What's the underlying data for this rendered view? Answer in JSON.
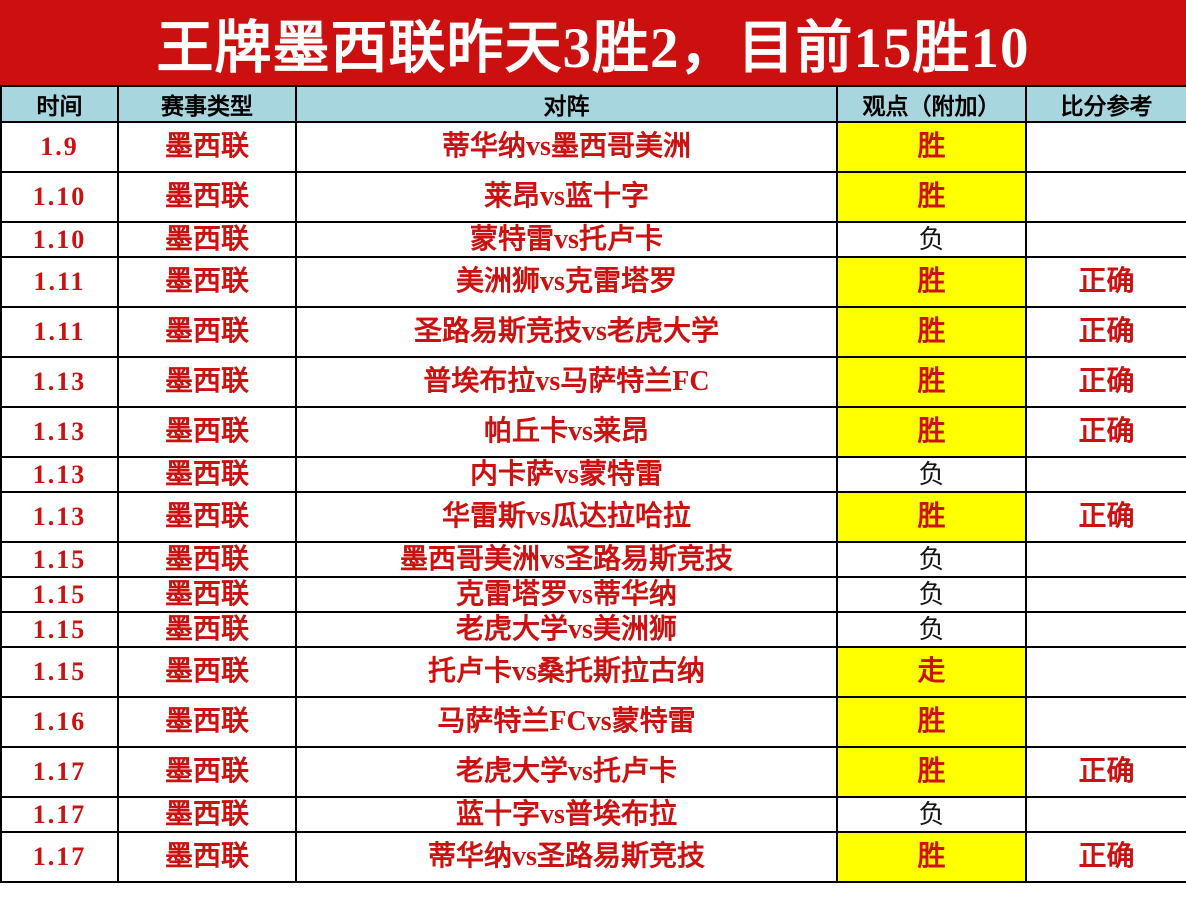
{
  "title": "王牌墨西联昨天3胜2，目前15胜10",
  "table": {
    "columns": [
      "时间",
      "赛事类型",
      "对阵",
      "观点（附加）",
      "比分参考"
    ],
    "rows": [
      {
        "time": "1.9",
        "league": "墨西联",
        "match": "蒂华纳vs墨西哥美洲",
        "view": "胜",
        "highlight": true,
        "score_ref": ""
      },
      {
        "time": "1.10",
        "league": "墨西联",
        "match": "莱昂vs蓝十字",
        "view": "胜",
        "highlight": true,
        "score_ref": ""
      },
      {
        "time": "1.10",
        "league": "墨西联",
        "match": "蒙特雷vs托卢卡",
        "view": "负",
        "highlight": false,
        "score_ref": ""
      },
      {
        "time": "1.11",
        "league": "墨西联",
        "match": "美洲狮vs克雷塔罗",
        "view": "胜",
        "highlight": true,
        "score_ref": "正确"
      },
      {
        "time": "1.11",
        "league": "墨西联",
        "match": "圣路易斯竞技vs老虎大学",
        "view": "胜",
        "highlight": true,
        "score_ref": "正确"
      },
      {
        "time": "1.13",
        "league": "墨西联",
        "match": "普埃布拉vs马萨特兰FC",
        "view": "胜",
        "highlight": true,
        "score_ref": "正确"
      },
      {
        "time": "1.13",
        "league": "墨西联",
        "match": "帕丘卡vs莱昂",
        "view": "胜",
        "highlight": true,
        "score_ref": "正确"
      },
      {
        "time": "1.13",
        "league": "墨西联",
        "match": "内卡萨vs蒙特雷",
        "view": "负",
        "highlight": false,
        "score_ref": ""
      },
      {
        "time": "1.13",
        "league": "墨西联",
        "match": "华雷斯vs瓜达拉哈拉",
        "view": "胜",
        "highlight": true,
        "score_ref": "正确"
      },
      {
        "time": "1.15",
        "league": "墨西联",
        "match": "墨西哥美洲vs圣路易斯竞技",
        "view": "负",
        "highlight": false,
        "score_ref": ""
      },
      {
        "time": "1.15",
        "league": "墨西联",
        "match": "克雷塔罗vs蒂华纳",
        "view": "负",
        "highlight": false,
        "score_ref": ""
      },
      {
        "time": "1.15",
        "league": "墨西联",
        "match": "老虎大学vs美洲狮",
        "view": "负",
        "highlight": false,
        "score_ref": ""
      },
      {
        "time": "1.15",
        "league": "墨西联",
        "match": "托卢卡vs桑托斯拉古纳",
        "view": "走",
        "highlight": true,
        "score_ref": ""
      },
      {
        "time": "1.16",
        "league": "墨西联",
        "match": "马萨特兰FCvs蒙特雷",
        "view": "胜",
        "highlight": true,
        "score_ref": ""
      },
      {
        "time": "1.17",
        "league": "墨西联",
        "match": "老虎大学vs托卢卡",
        "view": "胜",
        "highlight": true,
        "score_ref": "正确"
      },
      {
        "time": "1.17",
        "league": "墨西联",
        "match": "蓝十字vs普埃布拉",
        "view": "负",
        "highlight": false,
        "score_ref": ""
      },
      {
        "time": "1.17",
        "league": "墨西联",
        "match": "蒂华纳vs圣路易斯竞技",
        "view": "胜",
        "highlight": true,
        "score_ref": "正确"
      }
    ]
  },
  "colors": {
    "title_bg": "#CC0F0F",
    "title_text": "#FFFFFF",
    "column_header_bg": "#A8D6DE",
    "highlight_bg": "#FFFF00",
    "text_red": "#CC1111",
    "text_black": "#141414",
    "border_color": "#000000"
  }
}
